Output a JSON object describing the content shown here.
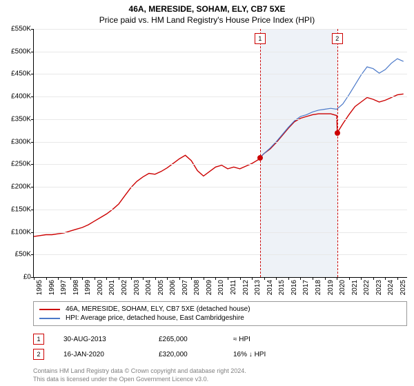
{
  "title_line1": "46A, MERESIDE, SOHAM, ELY, CB7 5XE",
  "title_line2": "Price paid vs. HM Land Registry's House Price Index (HPI)",
  "chart": {
    "type": "line",
    "y_label_prefix": "£",
    "y_label_suffix": "K",
    "ylim": [
      0,
      550
    ],
    "ytick_step": 50,
    "yticks": [
      0,
      50,
      100,
      150,
      200,
      250,
      300,
      350,
      400,
      450,
      500,
      550
    ],
    "xrange": [
      1995,
      2025.8
    ],
    "xticks": [
      1995,
      1996,
      1997,
      1998,
      1999,
      2000,
      2001,
      2002,
      2003,
      2004,
      2005,
      2006,
      2007,
      2008,
      2009,
      2010,
      2011,
      2012,
      2013,
      2014,
      2015,
      2016,
      2017,
      2018,
      2019,
      2020,
      2021,
      2022,
      2023,
      2024,
      2025
    ],
    "grid_color": "#e8e8e8",
    "background_color": "#ffffff",
    "shaded_region": {
      "start": 2013.67,
      "end": 2020.04,
      "color": "#eef2f7"
    },
    "series": [
      {
        "name": "property",
        "color": "#cc0000",
        "width": 1.4,
        "points": [
          [
            1995,
            90
          ],
          [
            1995.5,
            92
          ],
          [
            1996,
            94
          ],
          [
            1996.5,
            94
          ],
          [
            1997,
            96
          ],
          [
            1997.5,
            98
          ],
          [
            1998,
            102
          ],
          [
            1998.5,
            106
          ],
          [
            1999,
            110
          ],
          [
            1999.5,
            116
          ],
          [
            2000,
            124
          ],
          [
            2000.5,
            132
          ],
          [
            2001,
            140
          ],
          [
            2001.5,
            150
          ],
          [
            2002,
            162
          ],
          [
            2002.5,
            180
          ],
          [
            2003,
            198
          ],
          [
            2003.5,
            212
          ],
          [
            2004,
            222
          ],
          [
            2004.5,
            230
          ],
          [
            2005,
            228
          ],
          [
            2005.5,
            234
          ],
          [
            2006,
            242
          ],
          [
            2006.5,
            252
          ],
          [
            2007,
            262
          ],
          [
            2007.5,
            270
          ],
          [
            2008,
            258
          ],
          [
            2008.5,
            236
          ],
          [
            2009,
            224
          ],
          [
            2009.5,
            234
          ],
          [
            2010,
            244
          ],
          [
            2010.5,
            248
          ],
          [
            2011,
            240
          ],
          [
            2011.5,
            244
          ],
          [
            2012,
            240
          ],
          [
            2012.5,
            246
          ],
          [
            2013,
            252
          ],
          [
            2013.5,
            260
          ],
          [
            2013.67,
            265
          ],
          [
            2014,
            274
          ],
          [
            2014.5,
            284
          ],
          [
            2015,
            298
          ],
          [
            2015.5,
            314
          ],
          [
            2016,
            330
          ],
          [
            2016.5,
            344
          ],
          [
            2017,
            352
          ],
          [
            2017.5,
            356
          ],
          [
            2018,
            360
          ],
          [
            2018.5,
            362
          ],
          [
            2019,
            362
          ],
          [
            2019.5,
            362
          ],
          [
            2020,
            358
          ],
          [
            2020.04,
            320
          ],
          [
            2020.5,
            340
          ],
          [
            2021,
            360
          ],
          [
            2021.5,
            378
          ],
          [
            2022,
            388
          ],
          [
            2022.5,
            398
          ],
          [
            2023,
            394
          ],
          [
            2023.5,
            388
          ],
          [
            2024,
            392
          ],
          [
            2024.5,
            398
          ],
          [
            2025,
            404
          ],
          [
            2025.5,
            406
          ]
        ]
      },
      {
        "name": "hpi",
        "color": "#4a78c8",
        "width": 1.2,
        "points": [
          [
            2013.67,
            265
          ],
          [
            2014,
            274
          ],
          [
            2014.5,
            286
          ],
          [
            2015,
            300
          ],
          [
            2015.5,
            316
          ],
          [
            2016,
            332
          ],
          [
            2016.5,
            346
          ],
          [
            2017,
            356
          ],
          [
            2017.5,
            360
          ],
          [
            2018,
            366
          ],
          [
            2018.5,
            370
          ],
          [
            2019,
            372
          ],
          [
            2019.5,
            374
          ],
          [
            2020,
            372
          ],
          [
            2020.5,
            384
          ],
          [
            2021,
            404
          ],
          [
            2021.5,
            426
          ],
          [
            2022,
            448
          ],
          [
            2022.5,
            466
          ],
          [
            2023,
            462
          ],
          [
            2023.5,
            452
          ],
          [
            2024,
            460
          ],
          [
            2024.5,
            474
          ],
          [
            2025,
            484
          ],
          [
            2025.5,
            478
          ]
        ]
      }
    ],
    "sale_markers": [
      {
        "num": "1",
        "x": 2013.67,
        "y": 265
      },
      {
        "num": "2",
        "x": 2020.04,
        "y": 320
      }
    ]
  },
  "legend": {
    "items": [
      {
        "color": "#cc0000",
        "label": "46A, MERESIDE, SOHAM, ELY, CB7 5XE (detached house)"
      },
      {
        "color": "#4a78c8",
        "label": "HPI: Average price, detached house, East Cambridgeshire"
      }
    ]
  },
  "sales": [
    {
      "num": "1",
      "date": "30-AUG-2013",
      "price": "£265,000",
      "hpi": "≈ HPI"
    },
    {
      "num": "2",
      "date": "16-JAN-2020",
      "price": "£320,000",
      "hpi": "16% ↓ HPI"
    }
  ],
  "footer_line1": "Contains HM Land Registry data © Crown copyright and database right 2024.",
  "footer_line2": "This data is licensed under the Open Government Licence v3.0."
}
